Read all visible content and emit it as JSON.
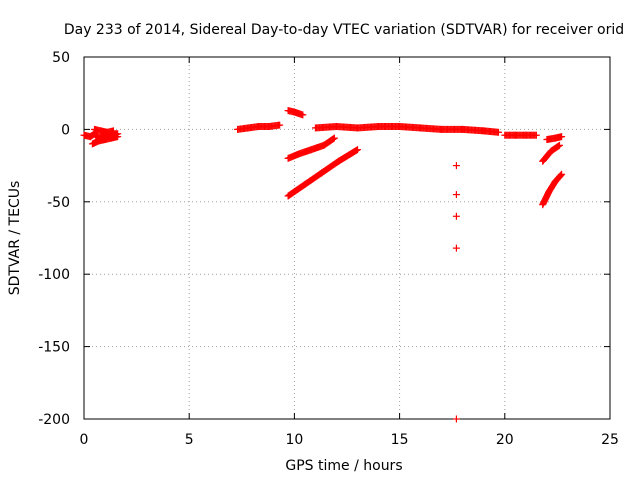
{
  "chart_data": {
    "type": "scatter",
    "title": "Day 233 of 2014, Sidereal Day-to-day VTEC variation (SDTVAR) for receiver orid",
    "xlabel": "GPS time / hours",
    "ylabel": "SDTVAR / TECUs",
    "xlim": [
      0,
      25
    ],
    "ylim": [
      -200,
      50
    ],
    "xticks": [
      0,
      5,
      10,
      15,
      20,
      25
    ],
    "yticks": [
      -200,
      -150,
      -100,
      -50,
      0,
      50
    ],
    "grid": true,
    "marker": "+",
    "color": "#ff0000",
    "segments": [
      {
        "x": [
          0.0,
          0.3,
          0.5,
          0.7,
          1.0,
          1.3,
          1.6
        ],
        "y": [
          -4,
          -5,
          -3,
          -6,
          -4,
          -5,
          -3
        ]
      },
      {
        "x": [
          0.4,
          0.7,
          1.0,
          1.3,
          1.6
        ],
        "y": [
          -10,
          -8,
          -7,
          -6,
          -5
        ]
      },
      {
        "x": [
          0.5,
          0.8,
          1.1,
          1.4
        ],
        "y": [
          0,
          -1,
          -2,
          -1
        ]
      },
      {
        "x": [
          7.3,
          7.8,
          8.3,
          8.8,
          9.3
        ],
        "y": [
          0,
          1,
          2,
          2,
          3
        ]
      },
      {
        "x": [
          9.7,
          10.0,
          10.4
        ],
        "y": [
          13,
          12,
          10
        ]
      },
      {
        "x": [
          9.7,
          10.2,
          10.8,
          11.4,
          11.9
        ],
        "y": [
          -20,
          -17,
          -14,
          -11,
          -6
        ]
      },
      {
        "x": [
          9.7,
          10.5,
          11.3,
          12.1,
          13.0
        ],
        "y": [
          -46,
          -38,
          -30,
          -22,
          -14
        ]
      },
      {
        "x": [
          11.0,
          12.0,
          13.0,
          14.0,
          15.0,
          16.0,
          17.0,
          18.0,
          19.0,
          19.7
        ],
        "y": [
          1,
          2,
          1,
          2,
          2,
          1,
          0,
          0,
          -1,
          -2
        ]
      },
      {
        "x": [
          20.0,
          20.5,
          21.0,
          21.5
        ],
        "y": [
          -4,
          -4,
          -4,
          -4
        ]
      },
      {
        "x": [
          21.8,
          22.2,
          22.6
        ],
        "y": [
          -22,
          -15,
          -11
        ]
      },
      {
        "x": [
          21.8,
          22.1,
          22.4,
          22.7
        ],
        "y": [
          -52,
          -43,
          -36,
          -31
        ]
      },
      {
        "x": [
          22.0,
          22.4,
          22.7
        ],
        "y": [
          -7,
          -6,
          -5
        ]
      },
      {
        "x": [
          17.7,
          17.7,
          17.7,
          17.7,
          17.7
        ],
        "y": [
          -25,
          -45,
          -60,
          -82,
          -200
        ]
      }
    ]
  }
}
